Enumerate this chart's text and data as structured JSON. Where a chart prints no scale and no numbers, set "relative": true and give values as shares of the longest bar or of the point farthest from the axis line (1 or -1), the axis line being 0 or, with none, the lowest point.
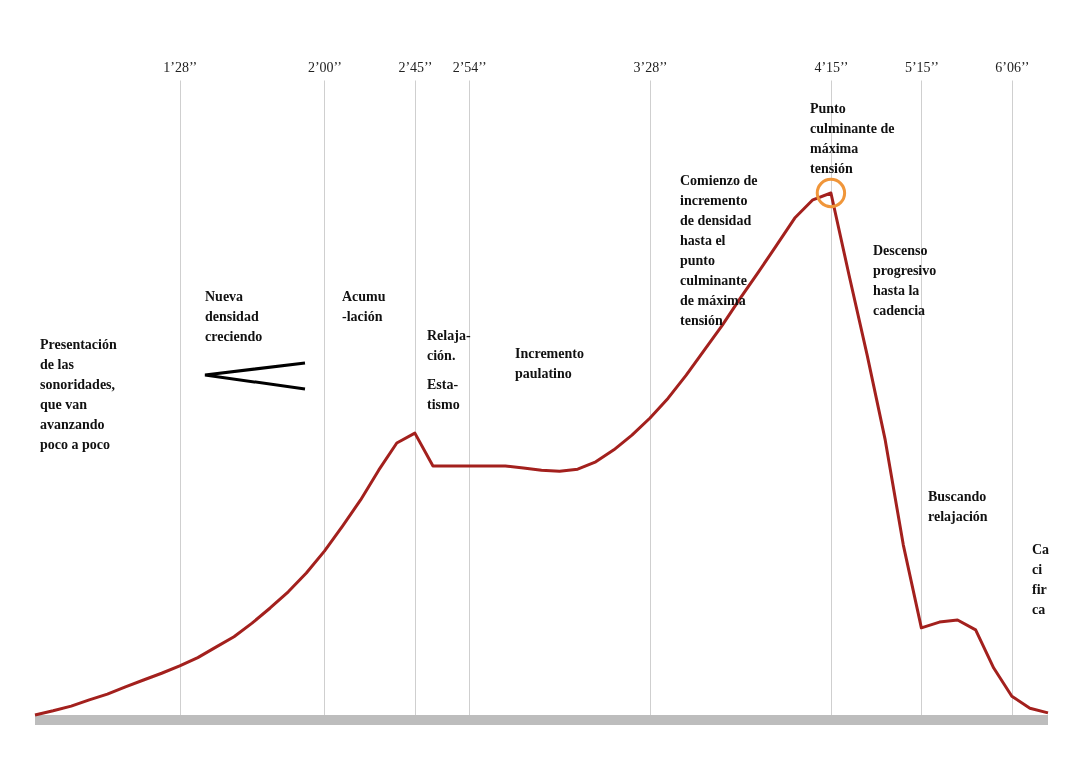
{
  "chart_data": {
    "type": "line",
    "relative": true,
    "grid": "x",
    "tick_labels": "x",
    "categories": [
      null,
      null,
      null,
      null,
      null,
      null,
      null,
      null,
      "1’28’’",
      null,
      null,
      null,
      null,
      null,
      null,
      null,
      "2’00’’",
      null,
      null,
      null,
      null,
      "2’45’’",
      null,
      null,
      "2’54’’",
      null,
      null,
      null,
      null,
      null,
      null,
      null,
      null,
      null,
      "3’28’’",
      null,
      null,
      null,
      null,
      null,
      null,
      null,
      null,
      null,
      "4’15’’",
      null,
      null,
      null,
      null,
      "5’15’’",
      null,
      null,
      null,
      null,
      "6’06’’",
      null,
      null
    ],
    "series": [
      {
        "type": "line",
        "color": "#a3201d",
        "marker": "none",
        "values": [
          0,
          0.008,
          0.017,
          0.029,
          0.04,
          0.054,
          0.067,
          0.08,
          0.094,
          0.11,
          0.13,
          0.15,
          0.176,
          0.205,
          0.236,
          0.272,
          0.314,
          0.362,
          0.412,
          0.469,
          0.521,
          0.54,
          0.477,
          0.477,
          0.477,
          0.477,
          0.477,
          0.473,
          0.469,
          0.467,
          0.471,
          0.485,
          0.508,
          0.536,
          0.569,
          0.607,
          0.651,
          0.699,
          0.747,
          0.799,
          0.849,
          0.9,
          0.952,
          0.987,
          1,
          0.843,
          0.69,
          0.527,
          0.326,
          0.167,
          0.178,
          0.182,
          0.163,
          0.09,
          0.036,
          0.013,
          0.004
        ]
      },
      {
        "type": "scatter",
        "color": "#f0963a",
        "marker": "circle",
        "x": [
          "4’15’’"
        ],
        "values": [
          1
        ]
      }
    ],
    "annotations": [
      "Presentación\nde las\nsonoridades,\nque van\navanzando\npoco a poco",
      "Nueva\ndensidad\ncreciendo",
      "Acumu\n-lación",
      "Relaja-\nción.",
      "Esta-\ntismo",
      "Incremento\npaulatino",
      "Comienzo de\nincremento\nde densidad\nhasta el\npunto\nculminante\nde máxima\ntensión",
      "Punto\nculminante de\nmáxima\ntensión",
      "Descenso\nprogresivo\nhasta la\ncadencia",
      "Buscando\nrelajación",
      "Ca\nci\nfir\nca"
    ]
  }
}
